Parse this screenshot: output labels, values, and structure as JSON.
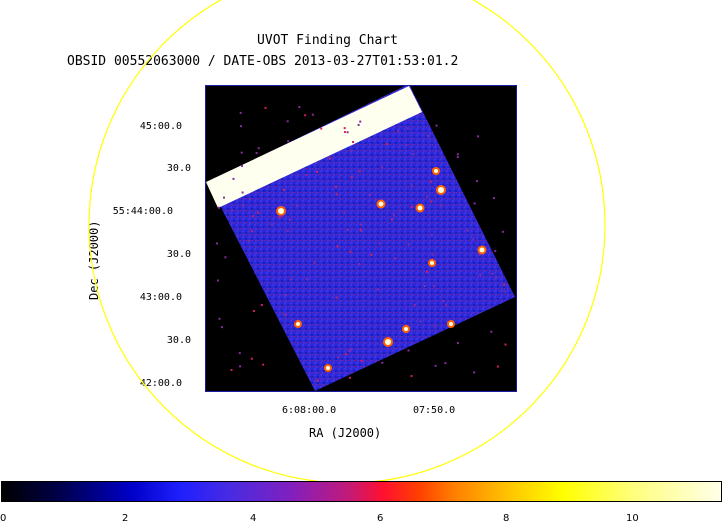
{
  "chart": {
    "title": "UVOT Finding Chart",
    "subtitle": "OBSID 00552063000 / DATE-OBS 2013-03-27T01:53:01.2",
    "xlabel": "RA (J2000)",
    "ylabel": "Dec (J2000)",
    "dec_ticks": [
      "45:00.0",
      "30.0",
      "55:44:00.0",
      "30.0",
      "43:00.0",
      "30.0",
      "42:00.0"
    ],
    "ra_ticks": [
      "6:08:00.0",
      "07:50.0"
    ],
    "colorbar_ticks": [
      "0",
      "2",
      "4",
      "6",
      "8",
      "10"
    ],
    "colors": {
      "circle": "#ffff00",
      "frame": "#1a1aa8",
      "sky": "#2a2ad8",
      "background": "#000000"
    }
  }
}
